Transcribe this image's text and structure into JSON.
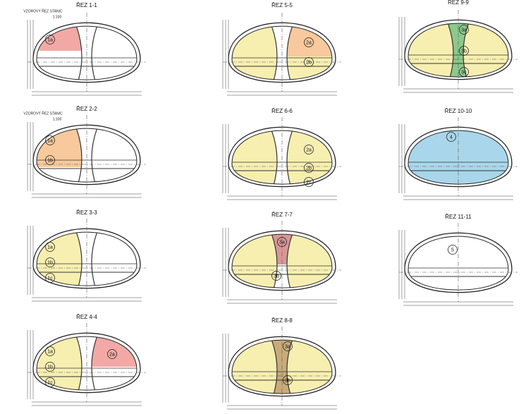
{
  "sections": [
    {
      "title": "ŘEZ 1-1",
      "notes": [
        "VZOROVÝ ŘEZ STANIC",
        "1:100"
      ],
      "labels": [
        "1a"
      ]
    },
    {
      "title": "ŘEZ 2-2",
      "notes": [
        "VZOROVÝ ŘEZ STANIC",
        "1:100"
      ],
      "labels": [
        "1a",
        "1b"
      ]
    },
    {
      "title": "ŘEZ 3-3",
      "labels": [
        "1a",
        "1b",
        "1c"
      ]
    },
    {
      "title": "ŘEZ 4-4",
      "labels": [
        "1a",
        "1b",
        "1c",
        "2a"
      ]
    },
    {
      "title": "ŘEZ 5-5",
      "labels": [
        "2a",
        "2b"
      ]
    },
    {
      "title": "ŘEZ 6-6",
      "labels": [
        "2a",
        "2b",
        "2c"
      ]
    },
    {
      "title": "ŘEZ 7-7",
      "labels": [
        "3a",
        "3b"
      ]
    },
    {
      "title": "ŘEZ 8-8",
      "labels": [
        "3a",
        "3b"
      ]
    },
    {
      "title": "ŘEZ 9-9",
      "labels": [
        "3a",
        "3b",
        "3c"
      ]
    },
    {
      "title": "ŘEZ 10-10",
      "labels": [
        "4"
      ]
    },
    {
      "title": "ŘEZ 11-11",
      "labels": [
        "5"
      ]
    }
  ]
}
